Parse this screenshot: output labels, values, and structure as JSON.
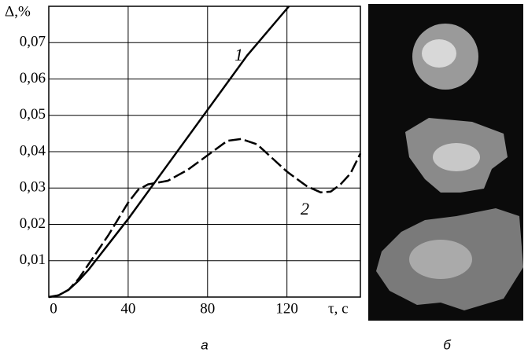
{
  "chart_data": {
    "type": "line",
    "y_label": "Δ,%",
    "x_label": "τ, с",
    "xlim": [
      0,
      157
    ],
    "xticks": [
      0,
      40,
      80,
      120
    ],
    "ylim": [
      0,
      0.08
    ],
    "yticks": [
      {
        "value": 0.01,
        "label": "0,01"
      },
      {
        "value": 0.02,
        "label": "0,02"
      },
      {
        "value": 0.03,
        "label": "0,03"
      },
      {
        "value": 0.04,
        "label": "0,04"
      },
      {
        "value": 0.05,
        "label": "0,05"
      },
      {
        "value": 0.06,
        "label": "0,06"
      },
      {
        "value": 0.07,
        "label": "0,07"
      }
    ],
    "grid": true,
    "series": [
      {
        "name": "1",
        "color": "#000000",
        "style": "solid",
        "x": [
          0,
          5,
          10,
          15,
          20,
          25,
          30,
          40,
          60,
          80,
          100,
          121
        ],
        "values": [
          0,
          0.0005,
          0.002,
          0.0045,
          0.0075,
          0.011,
          0.0145,
          0.0215,
          0.0365,
          0.0515,
          0.0665,
          0.08
        ]
      },
      {
        "name": "2",
        "color": "#000000",
        "style": "dashed",
        "x": [
          0,
          5,
          10,
          15,
          20,
          25,
          30,
          35,
          40,
          45,
          50,
          55,
          60,
          70,
          80,
          90,
          97,
          105,
          110,
          120,
          130,
          137,
          142,
          147,
          152,
          157
        ],
        "values": [
          0,
          0.0005,
          0.002,
          0.005,
          0.009,
          0.013,
          0.017,
          0.0215,
          0.026,
          0.0295,
          0.031,
          0.0315,
          0.032,
          0.035,
          0.039,
          0.043,
          0.0435,
          0.042,
          0.0395,
          0.0345,
          0.0305,
          0.0288,
          0.029,
          0.031,
          0.034,
          0.0395
        ]
      }
    ]
  },
  "panel_labels": [
    "а",
    "б"
  ]
}
